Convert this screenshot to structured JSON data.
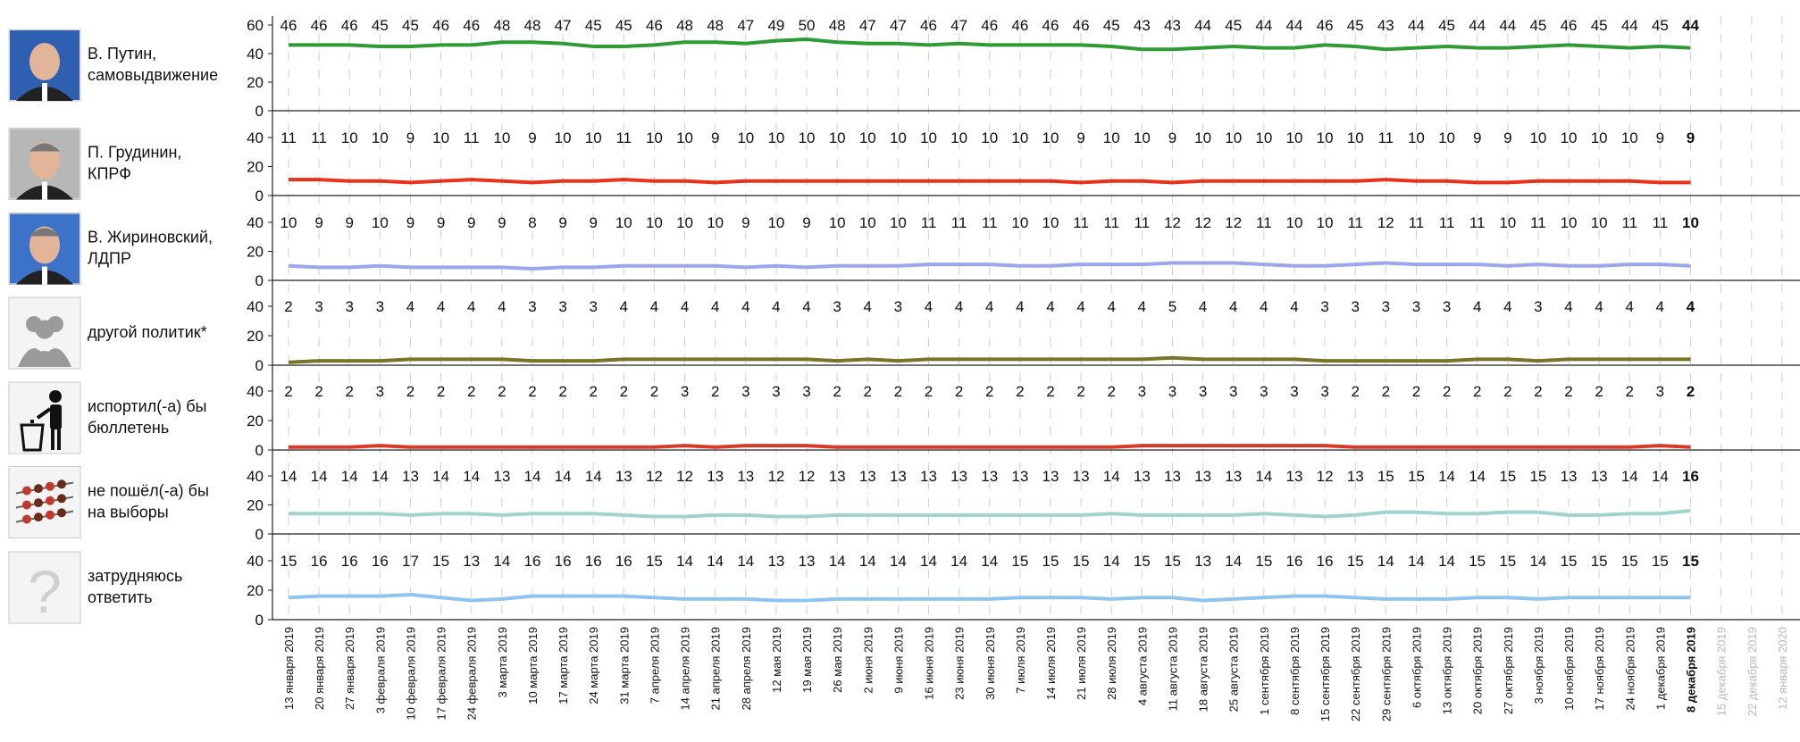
{
  "dates": [
    "13 января 2019",
    "20 января 2019",
    "27 января 2019",
    "3 февраля 2019",
    "10 февраля 2019",
    "17 февраля 2019",
    "24 февраля 2019",
    "3 марта 2019",
    "10 марта 2019",
    "17 марта 2019",
    "24 марта 2019",
    "31 марта 2019",
    "7 апреля 2019",
    "14 апреля 2019",
    "21 апреля 2019",
    "28 апреля 2019",
    "12 мая 2019",
    "19 мая 2019",
    "26 мая 2019",
    "2 июня 2019",
    "9 июня 2019",
    "16 июня 2019",
    "23 июня 2019",
    "30 июня 2019",
    "7 июля 2019",
    "14 июля 2019",
    "21 июля 2019",
    "28 июля 2019",
    "4 августа 2019",
    "11 августа 2019",
    "18 августа 2019",
    "25 августа 2019",
    "1 сентября 2019",
    "8 сентября 2019",
    "15 сентября 2019",
    "22 сентября 2019",
    "29 сентября 2019",
    "6 октября 2019",
    "13 октября 2019",
    "20 октября 2019",
    "27 октября 2019",
    "3 ноября 2019",
    "10 ноября 2019",
    "17 ноября 2019",
    "24 ноября 2019",
    "1 декабря 2019",
    "8 декабря 2019"
  ],
  "future_dates": [
    "15 декабря 2019",
    "22 декабря 2019",
    "12 января 2020"
  ],
  "chart_data": {
    "type": "line",
    "ylim": [
      0,
      40
    ],
    "ylim_first": [
      0,
      60
    ],
    "yticks": [
      0,
      20,
      40
    ],
    "yticks_first": [
      0,
      20,
      40,
      60
    ],
    "grid": "vertical dashed",
    "series": [
      {
        "name": "В. Путин, самовыдвижение",
        "label_lines": [
          "В. Путин,",
          "самовыдвижение"
        ],
        "color": "#2e9b34",
        "icon": "putin-photo",
        "values": [
          46,
          46,
          46,
          45,
          45,
          46,
          46,
          48,
          48,
          47,
          45,
          45,
          46,
          48,
          48,
          47,
          49,
          50,
          48,
          47,
          47,
          46,
          47,
          46,
          46,
          46,
          46,
          45,
          43,
          43,
          44,
          45,
          44,
          44,
          46,
          45,
          43,
          44,
          45,
          44,
          44,
          45,
          46,
          45,
          44,
          45,
          44
        ]
      },
      {
        "name": "П. Грудинин, КПРФ",
        "label_lines": [
          "П. Грудинин,",
          "КПРФ"
        ],
        "color": "#e8321e",
        "icon": "grudinin-photo",
        "values": [
          11,
          11,
          10,
          10,
          9,
          10,
          11,
          10,
          9,
          10,
          10,
          11,
          10,
          10,
          9,
          10,
          10,
          10,
          10,
          10,
          10,
          10,
          10,
          10,
          10,
          10,
          9,
          10,
          10,
          9,
          10,
          10,
          10,
          10,
          10,
          10,
          11,
          10,
          10,
          9,
          9,
          10,
          10,
          10,
          10,
          9,
          9
        ]
      },
      {
        "name": "В. Жириновский, ЛДПР",
        "label_lines": [
          "В. Жириновский,",
          "ЛДПР"
        ],
        "color": "#9ba6ec",
        "icon": "zhirinovsky-photo",
        "values": [
          10,
          9,
          9,
          10,
          9,
          9,
          9,
          9,
          8,
          9,
          9,
          10,
          10,
          10,
          10,
          9,
          10,
          9,
          10,
          10,
          10,
          11,
          11,
          11,
          10,
          10,
          11,
          11,
          11,
          12,
          12,
          12,
          11,
          10,
          10,
          11,
          12,
          11,
          11,
          11,
          10,
          11,
          10,
          10,
          11,
          11,
          10
        ]
      },
      {
        "name": "другой политик*",
        "label_lines": [
          "другой политик*"
        ],
        "color": "#7a7428",
        "icon": "silhouettes-icon",
        "values": [
          2,
          3,
          3,
          3,
          4,
          4,
          4,
          4,
          3,
          3,
          3,
          4,
          4,
          4,
          4,
          4,
          4,
          4,
          3,
          4,
          3,
          4,
          4,
          4,
          4,
          4,
          4,
          4,
          4,
          5,
          4,
          4,
          4,
          4,
          3,
          3,
          3,
          3,
          3,
          4,
          4,
          3,
          4,
          4,
          4,
          4,
          4
        ]
      },
      {
        "name": "испортил(-а) бы бюллетень",
        "label_lines": [
          "испортил(-а) бы",
          "бюллетень"
        ],
        "color": "#d73a26",
        "icon": "trash-person-icon",
        "values": [
          2,
          2,
          2,
          3,
          2,
          2,
          2,
          2,
          2,
          2,
          2,
          2,
          2,
          3,
          2,
          3,
          3,
          3,
          2,
          2,
          2,
          2,
          2,
          2,
          2,
          2,
          2,
          2,
          3,
          3,
          3,
          3,
          3,
          3,
          3,
          2,
          2,
          2,
          2,
          2,
          2,
          2,
          2,
          2,
          2,
          3,
          2
        ]
      },
      {
        "name": "не пошёл(-а) бы на выборы",
        "label_lines": [
          "не пошёл(-а) бы",
          "на выборы"
        ],
        "color": "#9fd3cc",
        "icon": "bbq-skewers-icon",
        "values": [
          14,
          14,
          14,
          14,
          13,
          14,
          14,
          13,
          14,
          14,
          14,
          13,
          12,
          12,
          13,
          13,
          12,
          12,
          13,
          13,
          13,
          13,
          13,
          13,
          13,
          13,
          13,
          14,
          13,
          13,
          13,
          13,
          14,
          13,
          12,
          13,
          15,
          15,
          14,
          14,
          15,
          15,
          13,
          13,
          14,
          14,
          16
        ]
      },
      {
        "name": "затрудняюсь ответить",
        "label_lines": [
          "затрудняюсь",
          "ответить"
        ],
        "color": "#8fc4ee",
        "icon": "question-mark-icon",
        "values": [
          15,
          16,
          16,
          16,
          17,
          15,
          13,
          14,
          16,
          16,
          16,
          16,
          15,
          14,
          14,
          14,
          13,
          13,
          14,
          14,
          14,
          14,
          14,
          14,
          15,
          15,
          15,
          14,
          15,
          15,
          13,
          14,
          15,
          16,
          16,
          15,
          14,
          14,
          14,
          15,
          15,
          14,
          15,
          15,
          15,
          15,
          15
        ]
      }
    ]
  }
}
